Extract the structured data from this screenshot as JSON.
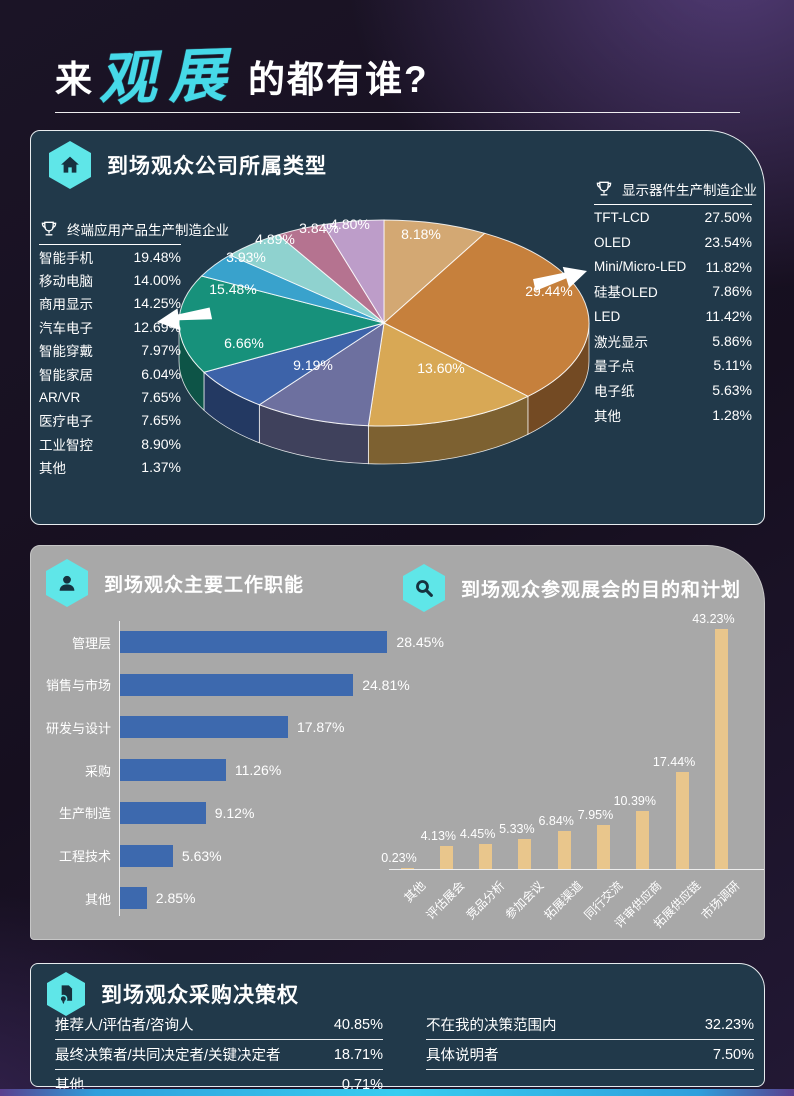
{
  "header": {
    "title_prefix": "来",
    "title_highlight": "观展",
    "title_suffix": "的都有谁?"
  },
  "panel_company": {
    "title": "到场观众公司所属类型",
    "left_legend": {
      "title": "终端应用产品生产制造企业",
      "items": [
        {
          "label": "智能手机",
          "value": "19.48%"
        },
        {
          "label": "移动电脑",
          "value": "14.00%"
        },
        {
          "label": "商用显示",
          "value": "14.25%"
        },
        {
          "label": "汽车电子",
          "value": "12.69%"
        },
        {
          "label": "智能穿戴",
          "value": "7.97%"
        },
        {
          "label": "智能家居",
          "value": "6.04%"
        },
        {
          "label": "AR/VR",
          "value": "7.65%"
        },
        {
          "label": "医疗电子",
          "value": "7.65%"
        },
        {
          "label": "工业智控",
          "value": "8.90%"
        },
        {
          "label": "其他",
          "value": "1.37%"
        }
      ]
    },
    "right_legend": {
      "title": "显示器件生产制造企业",
      "items": [
        {
          "label": "TFT-LCD",
          "value": "27.50%"
        },
        {
          "label": "OLED",
          "value": "23.54%"
        },
        {
          "label": "Mini/Micro-LED",
          "value": "11.82%"
        },
        {
          "label": "硅基OLED",
          "value": "7.86%"
        },
        {
          "label": "LED",
          "value": "11.42%"
        },
        {
          "label": "激光显示",
          "value": "5.86%"
        },
        {
          "label": "量子点",
          "value": "5.11%"
        },
        {
          "label": "电子纸",
          "value": "5.63%"
        },
        {
          "label": "其他",
          "value": "1.28%"
        }
      ]
    }
  },
  "panel_mid": {
    "jobs_title": "到场观众主要工作职能",
    "purpose_title": "到场观众参观展会的目的和计划"
  },
  "panel_decision": {
    "title": "到场观众采购决策权",
    "left_rows": [
      {
        "label": "推荐人/评估者/咨询人",
        "value": "40.85%"
      },
      {
        "label": "最终决策者/共同决定者/关键决定者",
        "value": "18.71%"
      },
      {
        "label": "其他",
        "value": "0.71%"
      }
    ],
    "right_rows": [
      {
        "label": "不在我的决策范围内",
        "value": "32.23%"
      },
      {
        "label": "具体说明者",
        "value": "7.50%"
      }
    ]
  },
  "chart_data": [
    {
      "type": "pie",
      "style": "3d",
      "title": "到场观众公司所属类型",
      "direction": "clockwise",
      "start_angle_deg": 0,
      "values": [
        8.18,
        29.44,
        13.6,
        9.19,
        6.66,
        15.48,
        3.93,
        4.89,
        3.84,
        4.8
      ],
      "labels": [
        "8.18%",
        "29.44%",
        "13.60%",
        "9.19%",
        "6.66%",
        "15.48%",
        "3.93%",
        "4.89%",
        "3.84%",
        "4.80%"
      ],
      "colors": [
        "#d3a873",
        "#c6803c",
        "#d8a855",
        "#6d709f",
        "#3d63a9",
        "#17917b",
        "#39a2cc",
        "#8fd2cf",
        "#b57390",
        "#bd9dc9"
      ]
    },
    {
      "type": "bar",
      "orientation": "horizontal",
      "title": "到场观众主要工作职能",
      "categories": [
        "管理层",
        "销售与市场",
        "研发与设计",
        "采购",
        "生产制造",
        "工程技术",
        "其他"
      ],
      "values": [
        28.45,
        24.81,
        17.87,
        11.26,
        9.12,
        5.63,
        2.85
      ],
      "unit": "%",
      "bar_color": "#3d69ae",
      "xlim": [
        0,
        30
      ],
      "grid": false
    },
    {
      "type": "bar",
      "orientation": "vertical",
      "title": "到场观众参观展会的目的和计划",
      "categories": [
        "其他",
        "评估展会",
        "竞品分析",
        "参加会议",
        "拓展渠道",
        "同行交流",
        "评审供应商",
        "拓展供应链",
        "市场调研"
      ],
      "values": [
        0.23,
        4.13,
        4.45,
        5.33,
        6.84,
        7.95,
        10.39,
        17.44,
        43.23
      ],
      "unit": "%",
      "bar_color": "#e9c68c",
      "ylim": [
        0,
        45
      ],
      "grid": false
    }
  ],
  "colors": {
    "accent_cyan": "#5fe6e8",
    "title_highlight": "#46d9e8",
    "panel_dark_bg": "#21394a",
    "panel_gray_bg": "#a8a8a8",
    "hbar_blue": "#3d69ae",
    "vbar_tan": "#e9c68c"
  }
}
